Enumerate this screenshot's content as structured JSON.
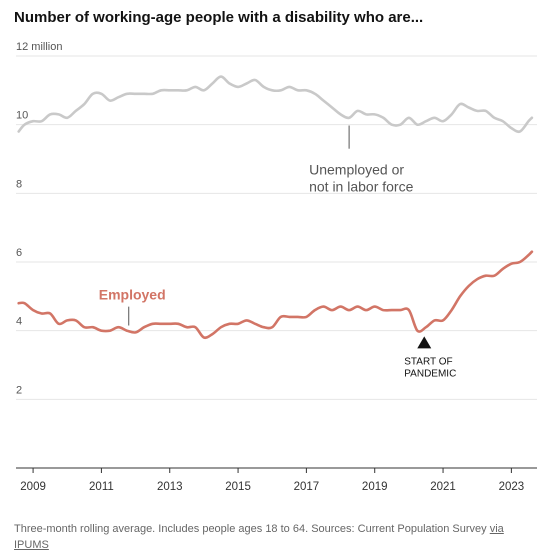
{
  "title": "Number of working-age people with a disability who are...",
  "source_text": "Three-month rolling average. Includes people ages 18 to 64. Sources: Current Population Survey ",
  "source_link": "via IPUMS",
  "colors": {
    "not_working": "#c9c9c9",
    "employed": "#d27566",
    "grid": "#e6e6e6",
    "axis": "#333333"
  },
  "chart_data": {
    "type": "line",
    "title": "Number of working-age people with a disability who are...",
    "y_unit_label": "12 million",
    "ylim": [
      0,
      12
    ],
    "y_ticks": [
      2,
      4,
      6,
      8,
      10,
      12
    ],
    "y_tick_labels": [
      "2",
      "4",
      "6",
      "8",
      "10",
      "12 million"
    ],
    "xlim": [
      2008.5,
      2023.75
    ],
    "x_ticks": [
      2009,
      2011,
      2013,
      2015,
      2017,
      2019,
      2021,
      2023
    ],
    "x_tick_labels": [
      "2009",
      "2011",
      "2013",
      "2015",
      "2017",
      "2019",
      "2021",
      "2023"
    ],
    "grid": true,
    "series": [
      {
        "name": "Unemployed or not in labor force",
        "color": "#c9c9c9",
        "x": [
          2008.58,
          2008.75,
          2009.0,
          2009.25,
          2009.5,
          2009.75,
          2010.0,
          2010.25,
          2010.5,
          2010.75,
          2011.0,
          2011.25,
          2011.5,
          2011.75,
          2012.0,
          2012.25,
          2012.5,
          2012.75,
          2013.0,
          2013.25,
          2013.5,
          2013.75,
          2014.0,
          2014.25,
          2014.5,
          2014.75,
          2015.0,
          2015.25,
          2015.5,
          2015.75,
          2016.0,
          2016.25,
          2016.5,
          2016.75,
          2017.0,
          2017.25,
          2017.5,
          2017.75,
          2018.0,
          2018.25,
          2018.5,
          2018.75,
          2019.0,
          2019.25,
          2019.5,
          2019.75,
          2020.0,
          2020.25,
          2020.5,
          2020.75,
          2021.0,
          2021.25,
          2021.5,
          2021.75,
          2022.0,
          2022.25,
          2022.5,
          2022.75,
          2023.0,
          2023.25,
          2023.5,
          2023.6
        ],
        "values": [
          9.8,
          10.0,
          10.1,
          10.1,
          10.3,
          10.3,
          10.2,
          10.4,
          10.6,
          10.9,
          10.9,
          10.7,
          10.8,
          10.9,
          10.9,
          10.9,
          10.9,
          11.0,
          11.0,
          11.0,
          11.0,
          11.1,
          11.0,
          11.2,
          11.4,
          11.2,
          11.1,
          11.2,
          11.3,
          11.1,
          11.0,
          11.0,
          11.1,
          11.0,
          11.0,
          10.9,
          10.7,
          10.5,
          10.3,
          10.2,
          10.4,
          10.3,
          10.3,
          10.2,
          10.0,
          10.0,
          10.2,
          10.0,
          10.1,
          10.2,
          10.1,
          10.3,
          10.6,
          10.5,
          10.4,
          10.4,
          10.2,
          10.1,
          9.9,
          9.8,
          10.1,
          10.2
        ]
      },
      {
        "name": "Employed",
        "color": "#d27566",
        "x": [
          2008.58,
          2008.75,
          2009.0,
          2009.25,
          2009.5,
          2009.75,
          2010.0,
          2010.25,
          2010.5,
          2010.75,
          2011.0,
          2011.25,
          2011.5,
          2011.75,
          2012.0,
          2012.25,
          2012.5,
          2012.75,
          2013.0,
          2013.25,
          2013.5,
          2013.75,
          2014.0,
          2014.25,
          2014.5,
          2014.75,
          2015.0,
          2015.25,
          2015.5,
          2015.75,
          2016.0,
          2016.25,
          2016.5,
          2016.75,
          2017.0,
          2017.25,
          2017.5,
          2017.75,
          2018.0,
          2018.25,
          2018.5,
          2018.75,
          2019.0,
          2019.25,
          2019.5,
          2019.75,
          2020.0,
          2020.25,
          2020.5,
          2020.75,
          2021.0,
          2021.25,
          2021.5,
          2021.75,
          2022.0,
          2022.25,
          2022.5,
          2022.75,
          2023.0,
          2023.25,
          2023.5,
          2023.6
        ],
        "values": [
          4.8,
          4.8,
          4.6,
          4.5,
          4.5,
          4.2,
          4.3,
          4.3,
          4.1,
          4.1,
          4.0,
          4.0,
          4.1,
          4.0,
          3.95,
          4.1,
          4.2,
          4.2,
          4.2,
          4.2,
          4.1,
          4.1,
          3.8,
          3.9,
          4.1,
          4.2,
          4.2,
          4.3,
          4.2,
          4.1,
          4.1,
          4.4,
          4.4,
          4.4,
          4.4,
          4.6,
          4.7,
          4.6,
          4.7,
          4.6,
          4.7,
          4.6,
          4.7,
          4.6,
          4.6,
          4.6,
          4.6,
          4.0,
          4.1,
          4.3,
          4.3,
          4.6,
          5.0,
          5.3,
          5.5,
          5.6,
          5.6,
          5.8,
          5.95,
          6.0,
          6.2,
          6.3
        ]
      }
    ],
    "annotations": {
      "not_working_label": [
        "Unemployed or",
        "not in labor force"
      ],
      "employed_label": "Employed",
      "pandemic_label": [
        "START OF",
        "PANDEMIC"
      ]
    }
  }
}
